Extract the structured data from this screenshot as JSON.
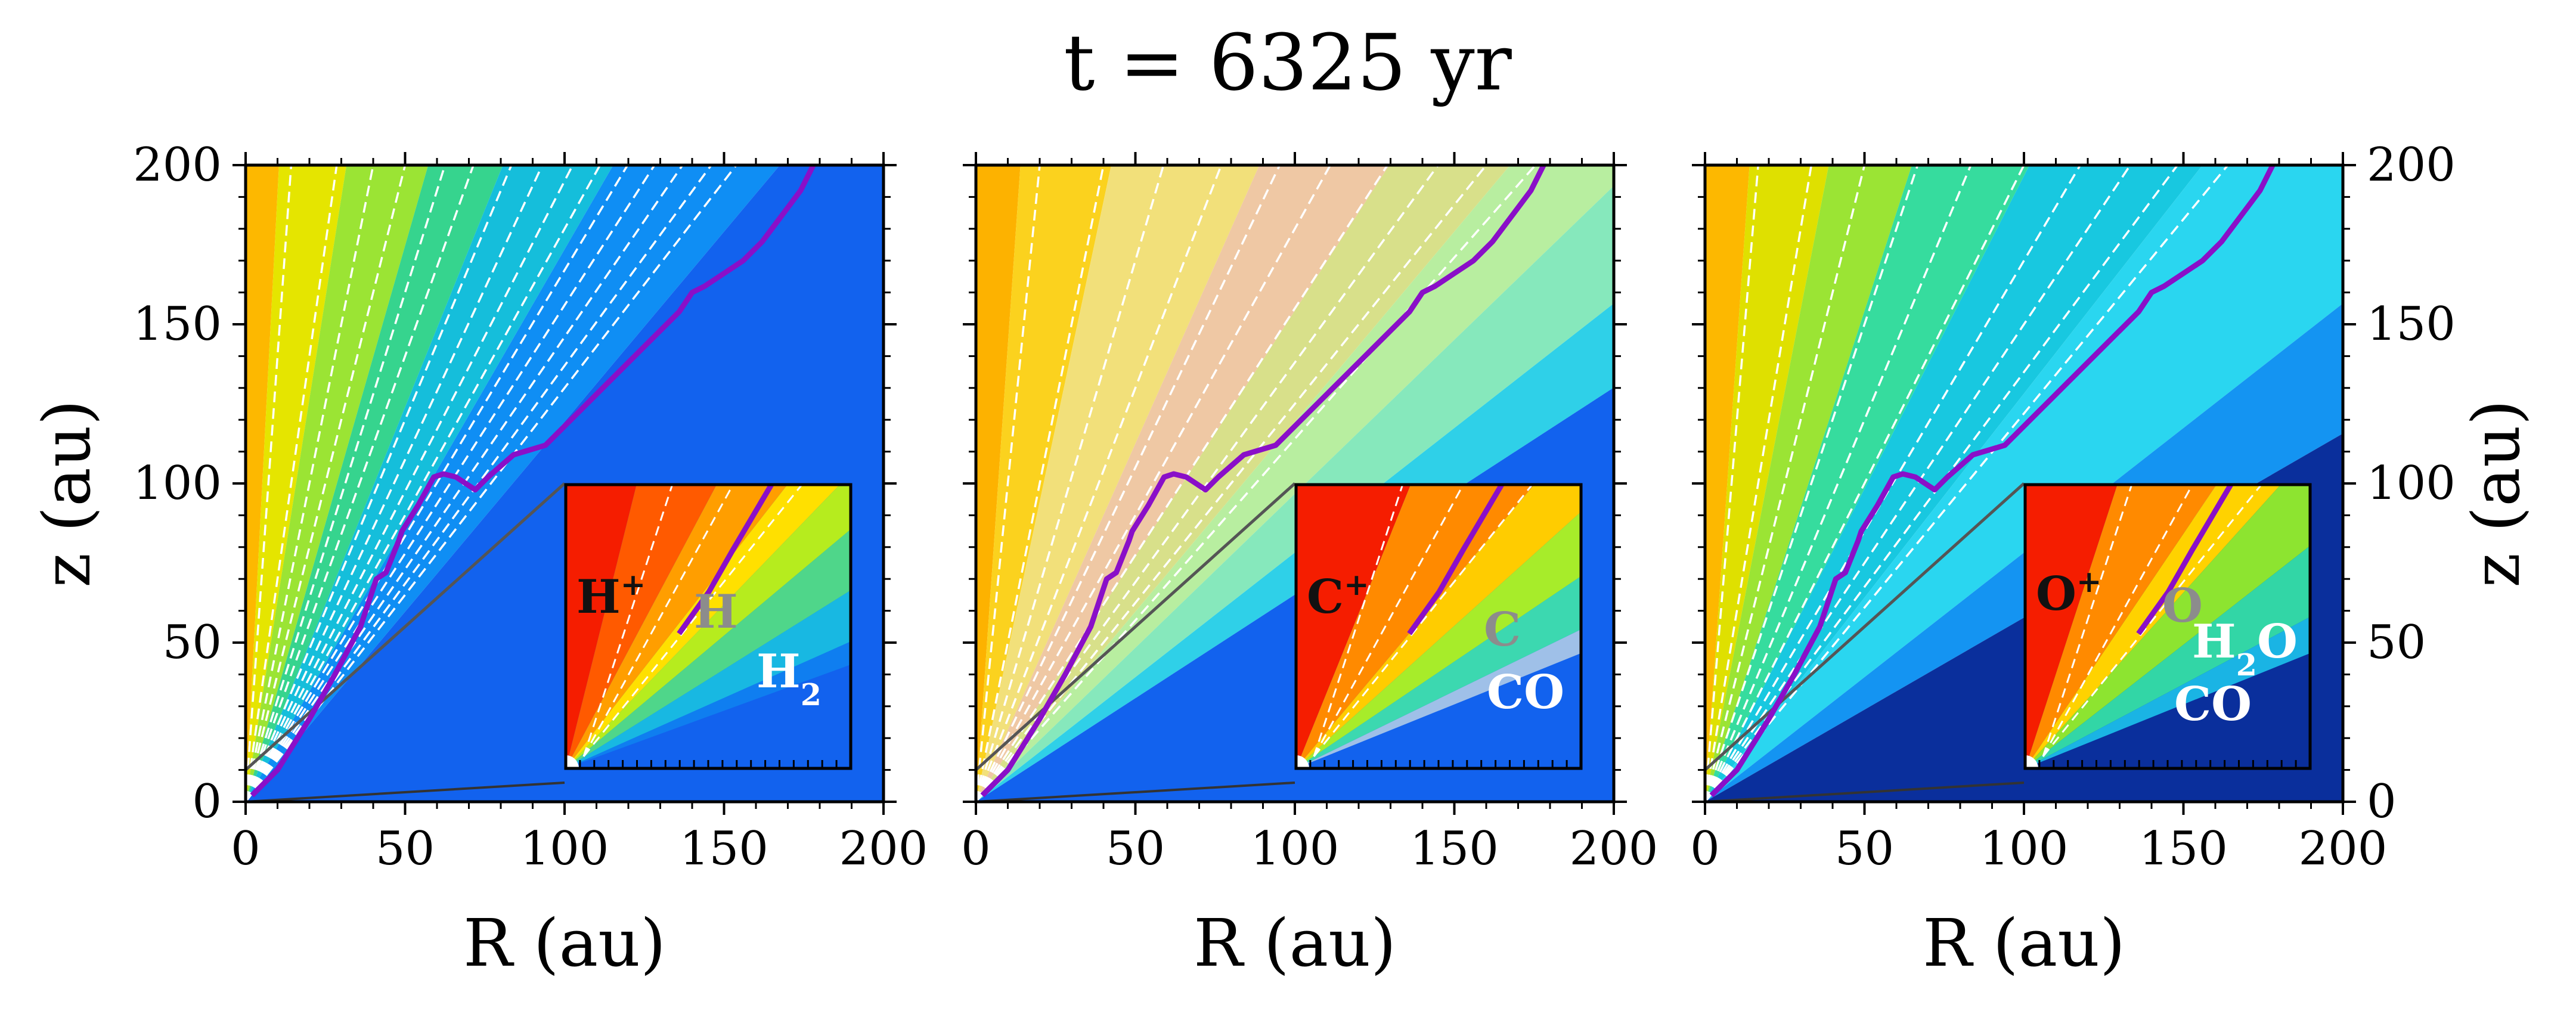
{
  "chart_data": {
    "type": "heatmap",
    "title": "t = 6325 yr",
    "xlabel": "R (au)",
    "ylabel": "z (au)",
    "xlim": [
      0,
      200
    ],
    "ylim": [
      0,
      200
    ],
    "xticks": [
      0,
      50,
      100,
      150,
      200
    ],
    "yticks": [
      0,
      50,
      100,
      150,
      200
    ],
    "inset_range": {
      "x": [
        0,
        20
      ],
      "y": [
        0,
        20
      ]
    },
    "colors": {
      "ionization_front": "#8a0fc8",
      "streamline": "#ffffff",
      "disk_surface": "#555555",
      "axis": "#000000"
    },
    "ionization_front": [
      [
        2,
        2
      ],
      [
        10,
        10
      ],
      [
        20,
        26
      ],
      [
        28,
        40
      ],
      [
        36,
        55
      ],
      [
        41,
        70
      ],
      [
        44,
        72
      ],
      [
        48,
        82
      ],
      [
        49,
        85
      ],
      [
        54,
        93
      ],
      [
        59,
        102
      ],
      [
        62,
        103
      ],
      [
        66,
        102
      ],
      [
        72,
        98
      ],
      [
        76,
        102
      ],
      [
        84,
        109
      ],
      [
        94,
        112
      ],
      [
        98,
        116
      ],
      [
        102,
        120
      ],
      [
        108,
        126
      ],
      [
        114,
        132
      ],
      [
        124,
        142
      ],
      [
        130,
        148
      ],
      [
        136,
        154
      ],
      [
        140,
        160
      ],
      [
        144,
        162
      ],
      [
        150,
        166
      ],
      [
        156,
        170
      ],
      [
        162,
        176
      ],
      [
        168,
        184
      ],
      [
        174,
        192
      ],
      [
        178,
        200
      ]
    ],
    "disk_surface": [
      [
        0,
        10
      ],
      [
        100,
        100
      ]
    ],
    "panels": [
      {
        "id": "hydrogen",
        "stream_slopes": [
          14,
          7,
          5,
          4,
          3.2,
          2.8,
          2.4,
          2.15,
          1.95,
          1.8,
          1.67,
          1.56,
          1.46,
          1.37,
          1.3
        ],
        "regions": [
          {
            "color": "#fdb800",
            "theta": [
              0,
              3
            ]
          },
          {
            "color": "#e5e500",
            "theta": [
              3,
              9
            ]
          },
          {
            "color": "#9be434",
            "theta": [
              9,
              16
            ]
          },
          {
            "color": "#36d48e",
            "theta": [
              16,
              22
            ]
          },
          {
            "color": "#15bedb",
            "theta": [
              22,
              30
            ]
          },
          {
            "color": "#0f8ef4",
            "theta": [
              30,
              40
            ]
          },
          {
            "color": "#1262ee",
            "theta": [
              40,
              90
            ]
          }
        ],
        "inset": {
          "labels": [
            {
              "text": "H",
              "sup": "+",
              "color": "#111111"
            },
            {
              "text": "H",
              "sup": "",
              "color": "#8c8c8c"
            },
            {
              "text": "H",
              "sub": "2",
              "color": "#ffffff"
            }
          ],
          "regions": [
            {
              "color": "#f51d00",
              "theta": [
                0,
                14
              ]
            },
            {
              "color": "#ff5a00",
              "theta": [
                14,
                28
              ]
            },
            {
              "color": "#ff9e00",
              "theta": [
                28,
                38
              ]
            },
            {
              "color": "#ffe000",
              "theta": [
                38,
                44
              ]
            },
            {
              "color": "#b6ec1e",
              "theta": [
                44,
                50
              ]
            },
            {
              "color": "#4fd68a",
              "theta": [
                50,
                58
              ]
            },
            {
              "color": "#18b8e2",
              "theta": [
                58,
                66
              ]
            },
            {
              "color": "#0f7ef0",
              "theta": [
                66,
                70
              ]
            },
            {
              "color": "#1262ee",
              "theta": [
                70,
                90
              ]
            }
          ]
        }
      },
      {
        "id": "carbon",
        "stream_slopes": [
          10,
          5,
          3.4,
          2.6,
          2.1,
          1.8,
          1.55,
          1.38,
          1.25,
          1.14
        ],
        "regions": [
          {
            "color": "#fdb200",
            "theta": [
              0,
              4
            ]
          },
          {
            "color": "#fbd21e",
            "theta": [
              4,
              12
            ]
          },
          {
            "color": "#f2e07a",
            "theta": [
              12,
              24
            ]
          },
          {
            "color": "#efc8a4",
            "theta": [
              24,
              33
            ]
          },
          {
            "color": "#d8e08a",
            "theta": [
              33,
              40
            ]
          },
          {
            "color": "#b8eea0",
            "theta": [
              40,
              46
            ]
          },
          {
            "color": "#86e8bc",
            "theta": [
              46,
              52
            ]
          },
          {
            "color": "#2fd0e8",
            "theta": [
              52,
              57
            ]
          },
          {
            "color": "#1262ee",
            "theta": [
              57,
              90
            ]
          }
        ],
        "inset": {
          "labels": [
            {
              "text": "C",
              "sup": "+",
              "color": "#111111"
            },
            {
              "text": "C",
              "sup": "",
              "color": "#8c8c8c"
            },
            {
              "text": "CO",
              "sub": "",
              "color": "#ffffff"
            }
          ],
          "regions": [
            {
              "color": "#f51d00",
              "theta": [
                0,
                22
              ]
            },
            {
              "color": "#ff8a00",
              "theta": [
                22,
                40
              ]
            },
            {
              "color": "#ffcc00",
              "theta": [
                40,
                48
              ]
            },
            {
              "color": "#a7ec2a",
              "theta": [
                48,
                56
              ]
            },
            {
              "color": "#3cd8b0",
              "theta": [
                56,
                64
              ]
            },
            {
              "color": "#9fc0e8",
              "theta": [
                64,
                68
              ]
            },
            {
              "color": "#1262ee",
              "theta": [
                68,
                90
              ]
            }
          ]
        }
      },
      {
        "id": "oxygen",
        "stream_slopes": [
          12,
          6,
          4,
          3,
          2.4,
          2,
          1.7,
          1.5,
          1.35,
          1.22
        ],
        "regions": [
          {
            "color": "#fdb800",
            "theta": [
              0,
              4
            ]
          },
          {
            "color": "#dfe000",
            "theta": [
              4,
              11
            ]
          },
          {
            "color": "#9be434",
            "theta": [
              11,
              18
            ]
          },
          {
            "color": "#36dc9e",
            "theta": [
              18,
              27
            ]
          },
          {
            "color": "#18c8e0",
            "theta": [
              27,
              38
            ]
          },
          {
            "color": "#2ad6f0",
            "theta": [
              38,
              52
            ]
          },
          {
            "color": "#1494f2",
            "theta": [
              52,
              60
            ]
          },
          {
            "color": "#0a2f9c",
            "theta": [
              60,
              90
            ]
          }
        ],
        "inset": {
          "labels": [
            {
              "text": "O",
              "sup": "+",
              "color": "#111111"
            },
            {
              "text": "O",
              "sup": "",
              "color": "#8c8c8c"
            },
            {
              "text": "H",
              "sub": "2",
              "tail": "O",
              "color": "#ffffff"
            },
            {
              "text": "CO",
              "sub": "",
              "color": "#ffffff"
            }
          ],
          "regions": [
            {
              "color": "#f51d00",
              "theta": [
                0,
                18
              ]
            },
            {
              "color": "#ff8a00",
              "theta": [
                18,
                34
              ]
            },
            {
              "color": "#ffd200",
              "theta": [
                34,
                42
              ]
            },
            {
              "color": "#8de430",
              "theta": [
                42,
                52
              ]
            },
            {
              "color": "#32d6a6",
              "theta": [
                52,
                62
              ]
            },
            {
              "color": "#1ab4e4",
              "theta": [
                62,
                68
              ]
            },
            {
              "color": "#0a2f9c",
              "theta": [
                68,
                90
              ]
            }
          ]
        }
      }
    ],
    "secondary_axis": {
      "ylabel": "z (au)",
      "side": "right"
    }
  }
}
